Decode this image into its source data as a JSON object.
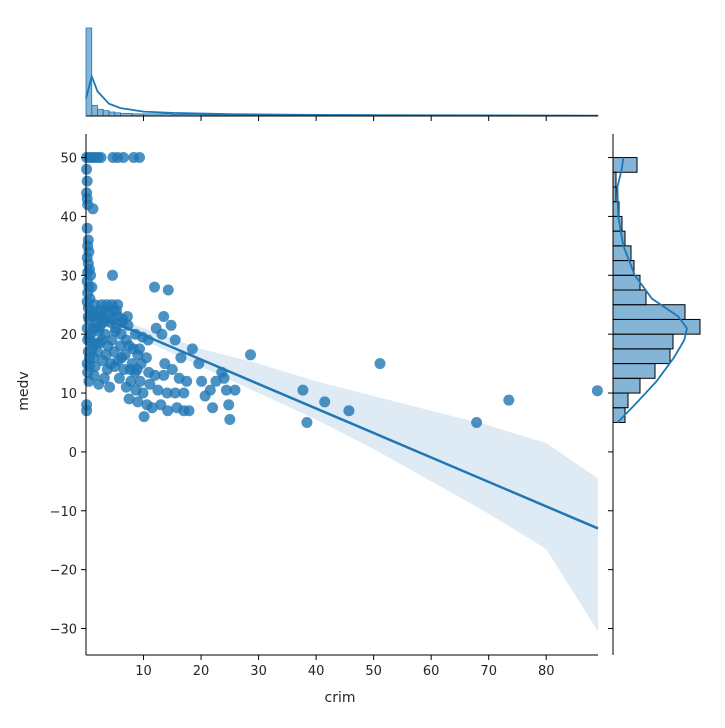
{
  "chart_data": {
    "type": "scatter",
    "title": "",
    "xlabel": "crim",
    "ylabel": "medv",
    "xlim": [
      0,
      89
    ],
    "ylim": [
      -34.5,
      54
    ],
    "xticks": [
      10,
      20,
      30,
      40,
      50,
      60,
      70,
      80
    ],
    "yticks": [
      -30,
      -20,
      -10,
      0,
      10,
      20,
      30,
      40,
      50
    ],
    "xtick_labels": [
      "10",
      "20",
      "30",
      "40",
      "50",
      "60",
      "70",
      "80"
    ],
    "ytick_labels": [
      "−30",
      "−20",
      "−10",
      "0",
      "10",
      "20",
      "30",
      "40",
      "50"
    ],
    "grid": false,
    "legend": "none",
    "colors": {
      "points": "#1f77b4",
      "ci_band": "#1f77b4",
      "hist_fill": "#1f77b4",
      "hist_edge": "#000000"
    },
    "regression": {
      "x": [
        0,
        89
      ],
      "y": [
        24.0,
        -13.0
      ]
    },
    "confidence_band": {
      "x": [
        0,
        10,
        20,
        30,
        40,
        50,
        60,
        70,
        80,
        89
      ],
      "lower": [
        23.0,
        19.0,
        14.5,
        10.0,
        5.5,
        0.5,
        -5.0,
        -10.5,
        -16.5,
        -30.5
      ],
      "upper": [
        25.0,
        21.0,
        17.5,
        15.0,
        12.0,
        9.5,
        7.0,
        4.5,
        1.5,
        -4.5
      ]
    },
    "points": [
      [
        0.1,
        50
      ],
      [
        0.6,
        50
      ],
      [
        1.1,
        50
      ],
      [
        1.6,
        50
      ],
      [
        2.1,
        50
      ],
      [
        2.6,
        50
      ],
      [
        4.7,
        50
      ],
      [
        5.5,
        50
      ],
      [
        6.5,
        50
      ],
      [
        8.3,
        50
      ],
      [
        9.3,
        50
      ],
      [
        0.1,
        48
      ],
      [
        0.2,
        46
      ],
      [
        0.1,
        44
      ],
      [
        0.2,
        43
      ],
      [
        0.3,
        42
      ],
      [
        1.2,
        41.3
      ],
      [
        0.2,
        38
      ],
      [
        0.4,
        36
      ],
      [
        0.3,
        35
      ],
      [
        0.5,
        34
      ],
      [
        0.2,
        33
      ],
      [
        0.4,
        32
      ],
      [
        0.6,
        31
      ],
      [
        0.3,
        30.5
      ],
      [
        0.8,
        30
      ],
      [
        4.6,
        30
      ],
      [
        0.2,
        29
      ],
      [
        0.5,
        28
      ],
      [
        1.0,
        28
      ],
      [
        0.3,
        27
      ],
      [
        0.7,
        26
      ],
      [
        0.2,
        25.5
      ],
      [
        1.5,
        25
      ],
      [
        2.7,
        25
      ],
      [
        3.6,
        25
      ],
      [
        4.5,
        25
      ],
      [
        5.5,
        25
      ],
      [
        0.4,
        24.5
      ],
      [
        2.5,
        24
      ],
      [
        3.3,
        24
      ],
      [
        4.8,
        24
      ],
      [
        5.6,
        23
      ],
      [
        1.3,
        23
      ],
      [
        0.5,
        22.5
      ],
      [
        3.0,
        22
      ],
      [
        4.2,
        22
      ],
      [
        6.3,
        22
      ],
      [
        7.3,
        21.5
      ],
      [
        0.2,
        21
      ],
      [
        1.7,
        21
      ],
      [
        2.2,
        20.5
      ],
      [
        5.1,
        20.5
      ],
      [
        6.1,
        20
      ],
      [
        8.6,
        20
      ],
      [
        9.8,
        19.5
      ],
      [
        10.8,
        19
      ],
      [
        0.3,
        19
      ],
      [
        1.0,
        18.5
      ],
      [
        2.4,
        18.5
      ],
      [
        3.8,
        18
      ],
      [
        7.5,
        18
      ],
      [
        8.2,
        17.5
      ],
      [
        9.3,
        17.5
      ],
      [
        0.4,
        17
      ],
      [
        2.0,
        17
      ],
      [
        4.9,
        17
      ],
      [
        6.8,
        16.5
      ],
      [
        9.0,
        16.5
      ],
      [
        10.5,
        16
      ],
      [
        1.3,
        16
      ],
      [
        2.9,
        15.5
      ],
      [
        5.6,
        15.5
      ],
      [
        8.0,
        15
      ],
      [
        9.6,
        15
      ],
      [
        0.2,
        15
      ],
      [
        0.6,
        14.5
      ],
      [
        1.6,
        14.5
      ],
      [
        3.7,
        14
      ],
      [
        6.6,
        14
      ],
      [
        8.9,
        14
      ],
      [
        10.9,
        13.5
      ],
      [
        12.0,
        13
      ],
      [
        13.5,
        13
      ],
      [
        0.3,
        13.5
      ],
      [
        1.4,
        13
      ],
      [
        3.2,
        12.5
      ],
      [
        5.8,
        12.5
      ],
      [
        7.8,
        12
      ],
      [
        9.4,
        12
      ],
      [
        11.1,
        11.5
      ],
      [
        0.5,
        12
      ],
      [
        2.2,
        11.5
      ],
      [
        4.1,
        11
      ],
      [
        7.0,
        11
      ],
      [
        8.7,
        10.5
      ],
      [
        9.9,
        10
      ],
      [
        12.5,
        10.5
      ],
      [
        14.1,
        10
      ],
      [
        15.5,
        10
      ],
      [
        7.5,
        9
      ],
      [
        9.0,
        8.5
      ],
      [
        10.6,
        8
      ],
      [
        11.5,
        7.5
      ],
      [
        13.0,
        8
      ],
      [
        14.2,
        7
      ],
      [
        15.8,
        7.5
      ],
      [
        17.0,
        7
      ],
      [
        17.9,
        7
      ],
      [
        0.1,
        7
      ],
      [
        0.1,
        8
      ],
      [
        10.1,
        6
      ],
      [
        11.9,
        28
      ],
      [
        14.3,
        27.5
      ],
      [
        13.5,
        23
      ],
      [
        12.2,
        21
      ],
      [
        14.8,
        21.5
      ],
      [
        13.2,
        20
      ],
      [
        15.5,
        19
      ],
      [
        16.5,
        16
      ],
      [
        13.7,
        15
      ],
      [
        15.0,
        14
      ],
      [
        16.2,
        12.5
      ],
      [
        17.5,
        12
      ],
      [
        17.0,
        10
      ],
      [
        18.5,
        17.5
      ],
      [
        19.6,
        15
      ],
      [
        20.1,
        12
      ],
      [
        20.7,
        9.5
      ],
      [
        21.6,
        10.5
      ],
      [
        22.0,
        7.5
      ],
      [
        22.6,
        12
      ],
      [
        23.6,
        13.5
      ],
      [
        24.0,
        12.5
      ],
      [
        24.4,
        10.5
      ],
      [
        24.8,
        8
      ],
      [
        25.0,
        5.5
      ],
      [
        25.9,
        10.5
      ],
      [
        28.6,
        16.5
      ],
      [
        37.7,
        10.5
      ],
      [
        38.4,
        5
      ],
      [
        41.5,
        8.5
      ],
      [
        45.7,
        7
      ],
      [
        51.1,
        15
      ],
      [
        67.9,
        5
      ],
      [
        73.5,
        8.8
      ],
      [
        88.9,
        10.4
      ],
      [
        0.5,
        19.5
      ],
      [
        0.8,
        20
      ],
      [
        1.2,
        21
      ],
      [
        1.8,
        22
      ],
      [
        2.5,
        21.5
      ],
      [
        3.3,
        20
      ],
      [
        4.5,
        19
      ],
      [
        5.2,
        21
      ],
      [
        6.0,
        18
      ],
      [
        7.0,
        19
      ],
      [
        0.6,
        16
      ],
      [
        1.1,
        17.5
      ],
      [
        1.9,
        18.5
      ],
      [
        2.8,
        19
      ],
      [
        3.5,
        16.5
      ],
      [
        4.3,
        15
      ],
      [
        5.0,
        14.5
      ],
      [
        6.2,
        16
      ],
      [
        7.7,
        14
      ],
      [
        8.5,
        13.5
      ],
      [
        0.4,
        23
      ],
      [
        0.9,
        24
      ],
      [
        1.6,
        23.5
      ],
      [
        2.3,
        23
      ],
      [
        3.1,
        22.5
      ],
      [
        3.9,
        23.5
      ],
      [
        4.6,
        22.5
      ],
      [
        5.3,
        24
      ],
      [
        6.4,
        22.5
      ],
      [
        7.2,
        23
      ]
    ],
    "top_hist": {
      "bins": [
        0,
        1,
        2,
        3,
        4,
        5,
        6,
        8,
        10,
        15,
        20,
        30,
        50,
        89
      ],
      "counts": [
        330,
        40,
        25,
        20,
        15,
        12,
        10,
        8,
        8,
        6,
        4,
        3,
        2
      ]
    },
    "right_hist": {
      "bins": [
        5,
        7.5,
        10,
        12.5,
        15,
        17.5,
        20,
        22.5,
        25,
        27.5,
        30,
        32.5,
        35,
        37.5,
        40,
        42.5,
        45,
        47.5,
        50
      ],
      "counts": [
        8,
        10,
        18,
        28,
        38,
        40,
        58,
        48,
        22,
        18,
        14,
        12,
        8,
        6,
        4,
        2,
        2,
        16
      ]
    }
  }
}
